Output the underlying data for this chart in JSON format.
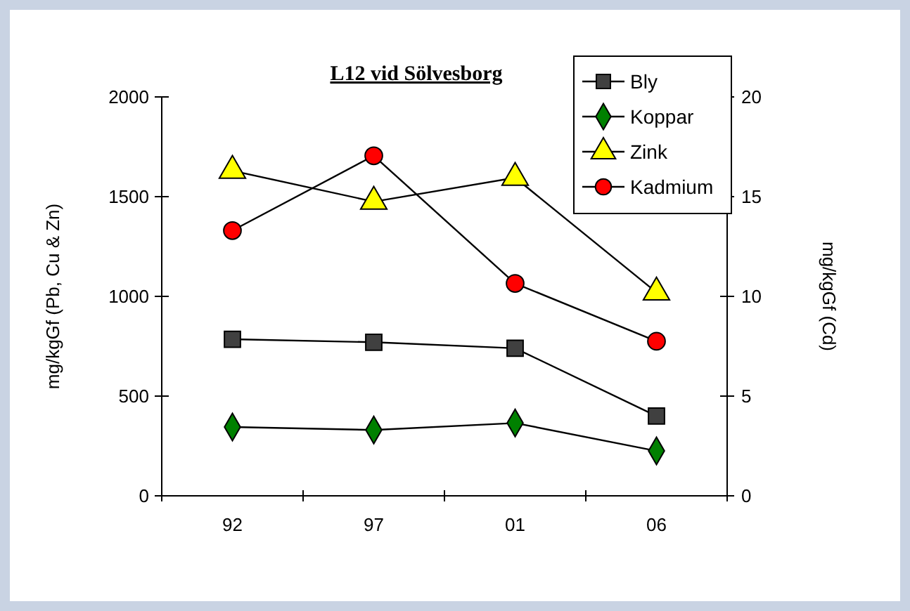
{
  "chart_data": {
    "type": "line",
    "title": "L12 vid Sölvesborg",
    "ylabel": "mg/kgGf  (Pb, Cu & Zn)",
    "y2label": "mg/kgGf  (Cd)",
    "categories": [
      "92",
      "97",
      "01",
      "06"
    ],
    "series": [
      {
        "name": "Bly",
        "color": "#404040",
        "marker": "square",
        "values": [
          785,
          770,
          740,
          400
        ]
      },
      {
        "name": "Koppar",
        "color": "#008000",
        "marker": "diamond",
        "values": [
          345,
          330,
          365,
          225
        ]
      },
      {
        "name": "Zink",
        "color": "#ffff00",
        "marker": "triangle",
        "values": [
          1630,
          1475,
          1595,
          1020
        ]
      },
      {
        "name": "Kadmium",
        "color": "#ff0000",
        "marker": "circle",
        "axis": "y2",
        "values": [
          13.3,
          17.05,
          10.65,
          7.75
        ]
      }
    ],
    "ylim": [
      0,
      2000
    ],
    "yticks": [
      0,
      500,
      1000,
      1500,
      2000
    ],
    "y2lim": [
      0,
      20
    ],
    "y2ticks": [
      0,
      5,
      10,
      15,
      20
    ],
    "grid": false,
    "legend": "top right",
    "line_style": "solid"
  }
}
